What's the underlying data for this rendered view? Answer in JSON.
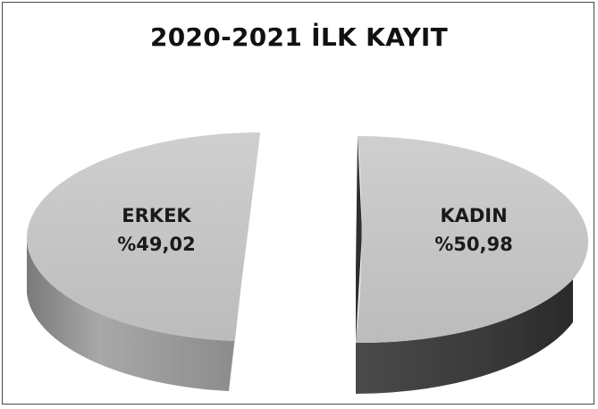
{
  "chart_data": {
    "type": "pie",
    "title": "2020-2021 İLK KAYIT",
    "slices": [
      {
        "name": "ERKEK",
        "value": 49.02,
        "label": "%49,02"
      },
      {
        "name": "KADIN",
        "value": 50.98,
        "label": "%50,98"
      }
    ],
    "exploded": true,
    "three_d": true,
    "colors": {
      "top": "#c4c4c4",
      "side": "#9a9a9a",
      "side_dark": "#3d3d3d"
    }
  }
}
